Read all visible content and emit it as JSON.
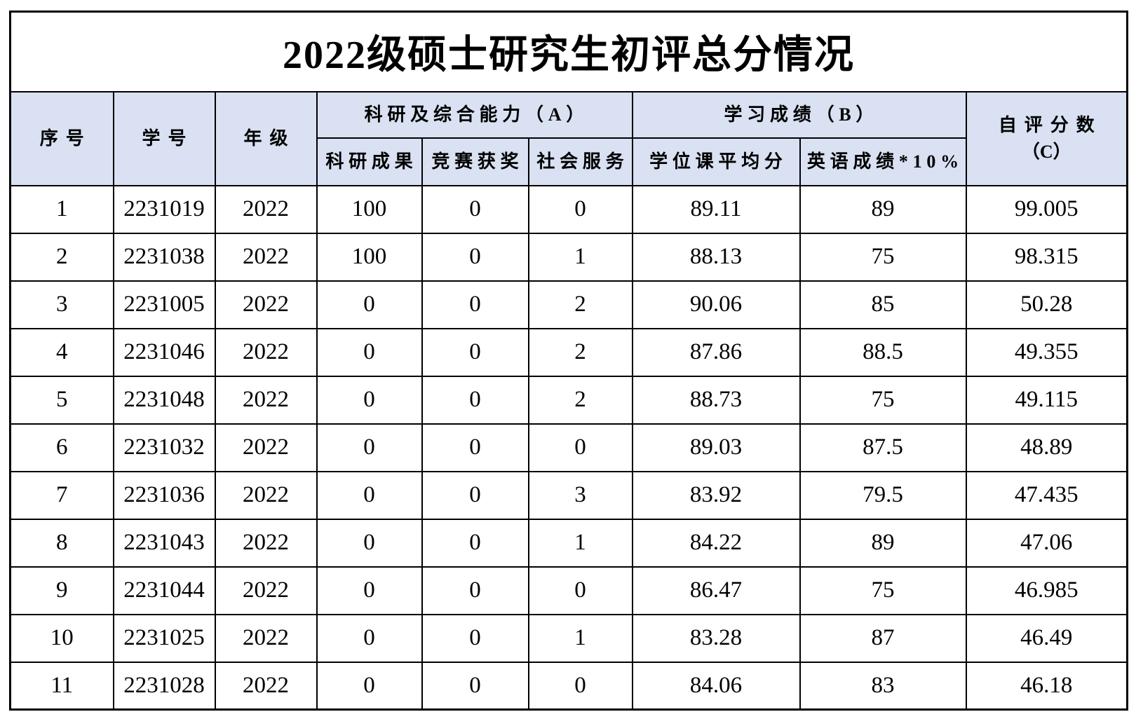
{
  "title": "2022级硕士研究生初评总分情况",
  "colors": {
    "header_bg": "#d9e1f2",
    "border": "#000000",
    "text": "#000000",
    "page_bg": "#ffffff"
  },
  "table": {
    "headers": {
      "index": "序号",
      "student_id": "学号",
      "grade": "年级",
      "group_a": "科研及综合能力（A）",
      "a_research": "科研成果",
      "a_competition": "竞赛获奖",
      "a_service": "社会服务",
      "group_b": "学习成绩（B）",
      "b_degree_avg": "学位课平均分",
      "b_english": "英语成绩*10%",
      "score_c_line1": "自评分数",
      "score_c_line2": "（C）"
    },
    "rows": [
      [
        "1",
        "2231019",
        "2022",
        "100",
        "0",
        "0",
        "89.11",
        "89",
        "99.005"
      ],
      [
        "2",
        "2231038",
        "2022",
        "100",
        "0",
        "1",
        "88.13",
        "75",
        "98.315"
      ],
      [
        "3",
        "2231005",
        "2022",
        "0",
        "0",
        "2",
        "90.06",
        "85",
        "50.28"
      ],
      [
        "4",
        "2231046",
        "2022",
        "0",
        "0",
        "2",
        "87.86",
        "88.5",
        "49.355"
      ],
      [
        "5",
        "2231048",
        "2022",
        "0",
        "0",
        "2",
        "88.73",
        "75",
        "49.115"
      ],
      [
        "6",
        "2231032",
        "2022",
        "0",
        "0",
        "0",
        "89.03",
        "87.5",
        "48.89"
      ],
      [
        "7",
        "2231036",
        "2022",
        "0",
        "0",
        "3",
        "83.92",
        "79.5",
        "47.435"
      ],
      [
        "8",
        "2231043",
        "2022",
        "0",
        "0",
        "1",
        "84.22",
        "89",
        "47.06"
      ],
      [
        "9",
        "2231044",
        "2022",
        "0",
        "0",
        "0",
        "86.47",
        "75",
        "46.985"
      ],
      [
        "10",
        "2231025",
        "2022",
        "0",
        "0",
        "1",
        "83.28",
        "87",
        "46.49"
      ],
      [
        "11",
        "2231028",
        "2022",
        "0",
        "0",
        "0",
        "84.06",
        "83",
        "46.18"
      ]
    ]
  }
}
